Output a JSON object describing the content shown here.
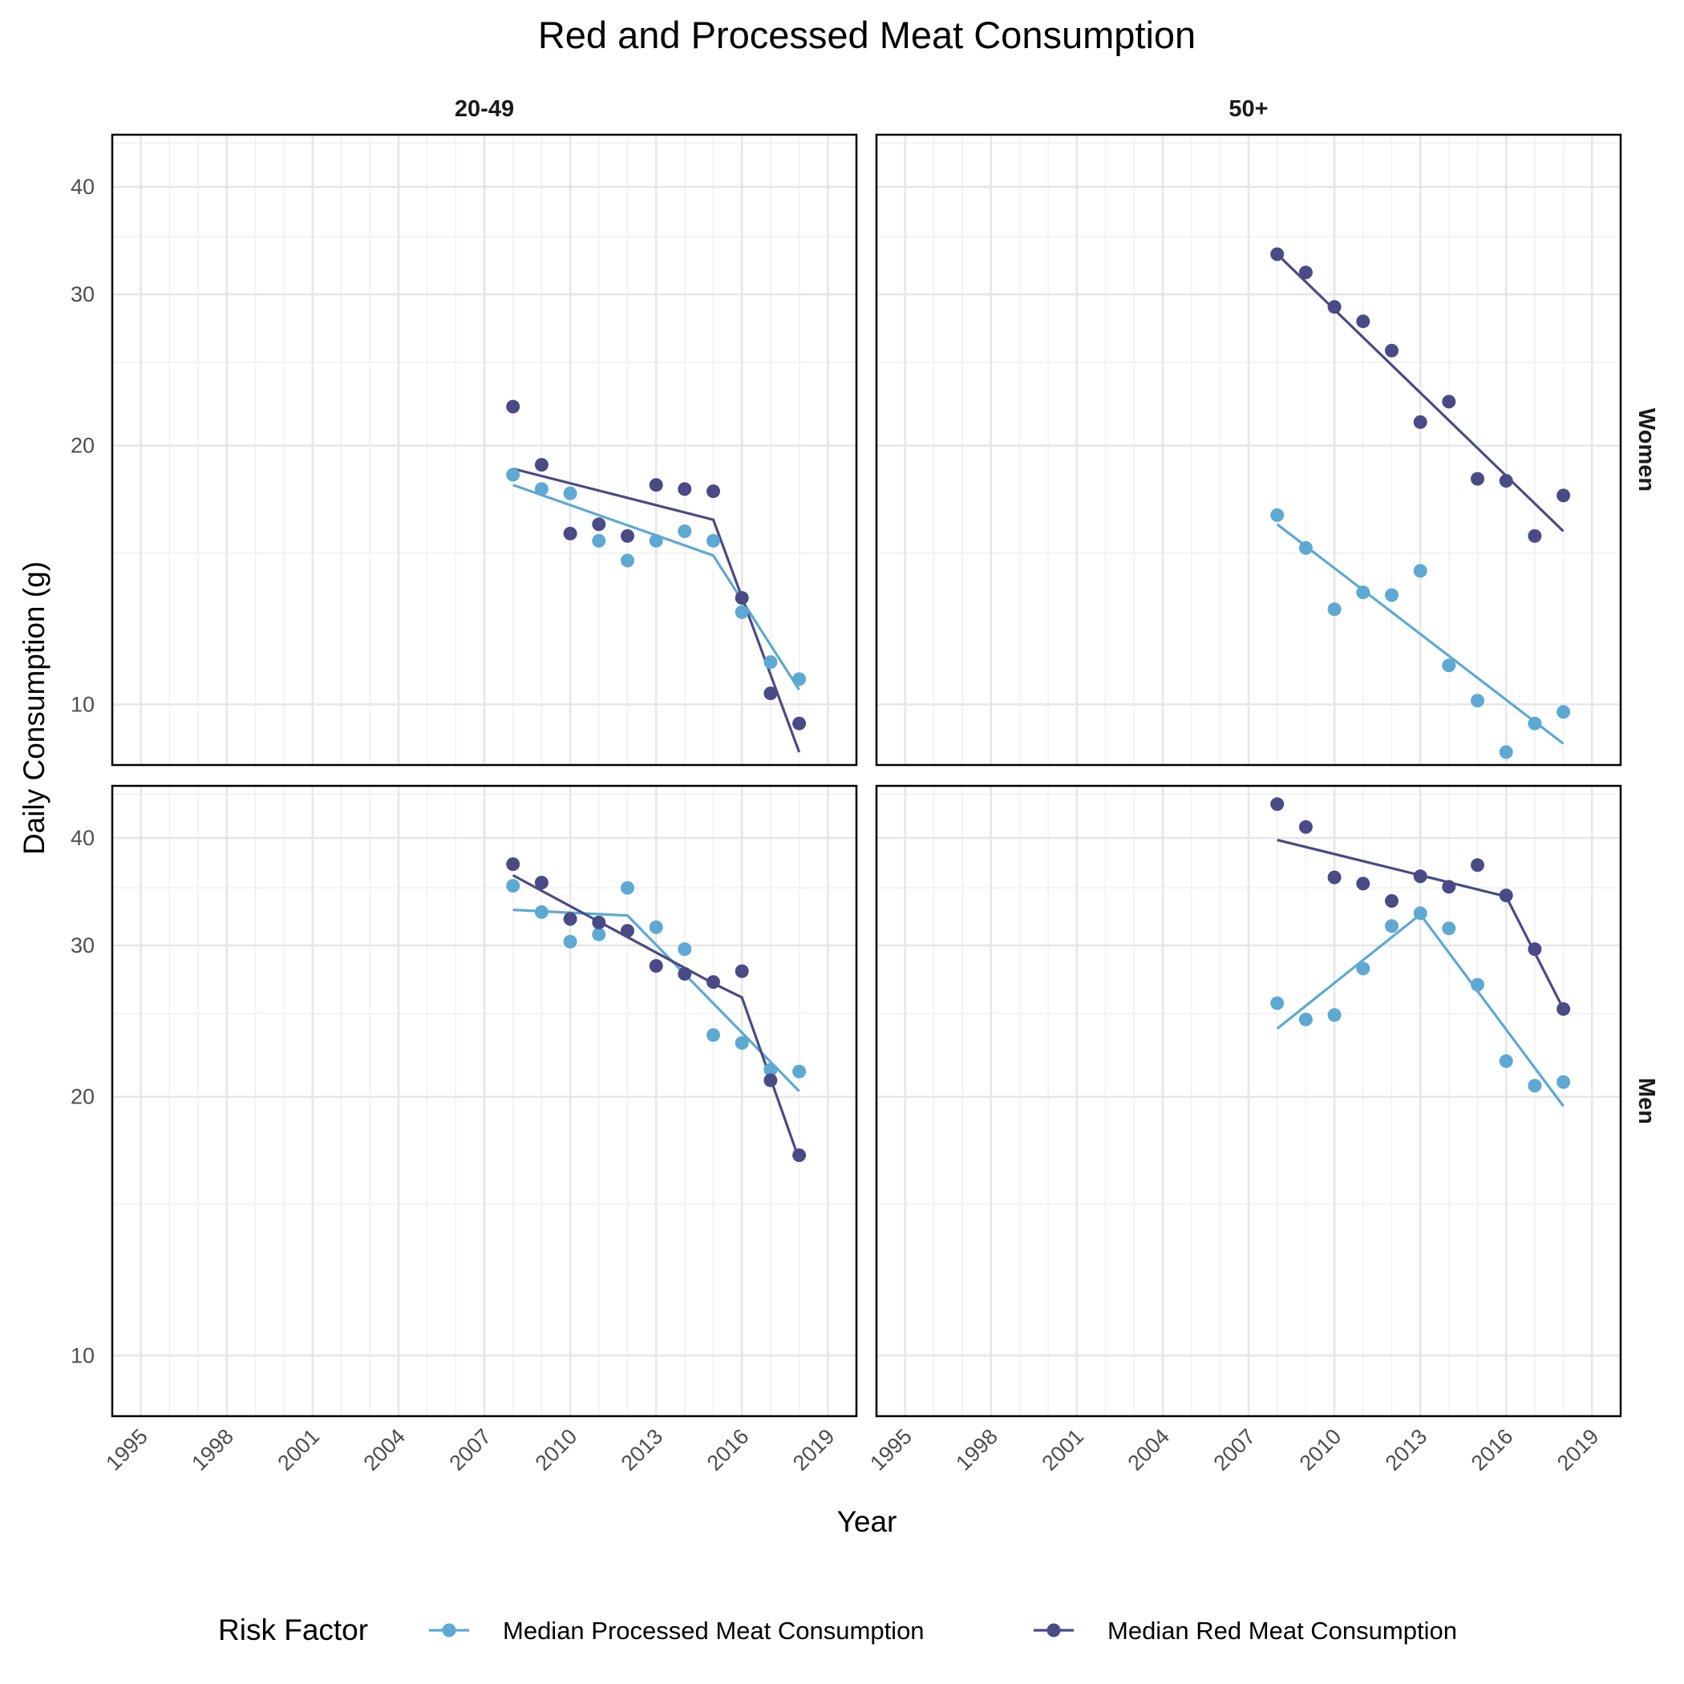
{
  "chart_data": {
    "type": "scatter",
    "title": "Red and Processed Meat Consumption",
    "xlabel": "Year",
    "ylabel": "Daily Consumption (g)",
    "x_ticks": [
      1995,
      1998,
      2001,
      2004,
      2007,
      2010,
      2013,
      2016,
      2019
    ],
    "xlim": [
      1994,
      2020
    ],
    "y_ticks": [
      10,
      20,
      30,
      40
    ],
    "ylim": [
      8.5,
      46
    ],
    "y_scale": "log",
    "grid": true,
    "legend": {
      "title": "Risk Factor",
      "position": "bottom",
      "entries": [
        "Median Processed Meat Consumption",
        "Median Red Meat Consumption"
      ]
    },
    "colors": {
      "processed": "#5DA9D3",
      "red": "#4A4A86"
    },
    "column_facets": [
      "20-49",
      "50+"
    ],
    "row_facets": [
      "Women",
      "Men"
    ],
    "years": [
      2008,
      2009,
      2010,
      2011,
      2012,
      2013,
      2014,
      2015,
      2016,
      2017,
      2018
    ],
    "panels": [
      {
        "age": "20-49",
        "sex": "Women",
        "processed": [
          18.5,
          17.8,
          17.6,
          15.5,
          14.7,
          15.5,
          15.9,
          15.5,
          12.8,
          11.2,
          10.7
        ],
        "red": [
          22.2,
          19.0,
          15.8,
          16.2,
          15.7,
          18.0,
          17.8,
          17.7,
          13.3,
          10.3,
          9.5
        ],
        "processed_trend": [
          [
            2008,
            18.0
          ],
          [
            2015,
            14.9
          ],
          [
            2018,
            10.4
          ]
        ],
        "red_trend": [
          [
            2008,
            18.8
          ],
          [
            2015,
            16.4
          ],
          [
            2018,
            8.8
          ]
        ]
      },
      {
        "age": "50+",
        "sex": "Women",
        "processed": [
          16.6,
          15.2,
          12.9,
          13.5,
          13.4,
          14.3,
          11.1,
          10.1,
          8.8,
          9.5,
          9.8
        ],
        "red": [
          33.4,
          31.8,
          29.0,
          27.9,
          25.8,
          21.3,
          22.5,
          18.3,
          18.2,
          15.7,
          17.5
        ],
        "processed_trend": [
          [
            2008,
            16.2
          ],
          [
            2018,
            9.0
          ]
        ],
        "red_trend": [
          [
            2008,
            33.4
          ],
          [
            2018,
            15.9
          ]
        ]
      },
      {
        "age": "20-49",
        "sex": "Men",
        "processed": [
          35.2,
          32.8,
          30.3,
          30.9,
          35.0,
          31.5,
          29.7,
          23.6,
          23.1,
          21.5,
          21.4
        ],
        "red": [
          37.3,
          35.5,
          32.2,
          31.9,
          31.2,
          28.4,
          27.8,
          27.2,
          28.0,
          20.9,
          17.1
        ],
        "processed_trend": [
          [
            2008,
            33.0
          ],
          [
            2012,
            32.5
          ],
          [
            2018,
            20.3
          ]
        ],
        "red_trend": [
          [
            2008,
            36.2
          ],
          [
            2015,
            27.1
          ],
          [
            2016,
            26.1
          ],
          [
            2018,
            16.9
          ]
        ]
      },
      {
        "age": "50+",
        "sex": "Men",
        "processed": [
          25.7,
          24.6,
          24.9,
          28.2,
          31.6,
          32.7,
          31.4,
          27.0,
          22.0,
          20.6,
          20.8
        ],
        "red": [
          43.8,
          41.2,
          36.0,
          35.4,
          33.8,
          36.1,
          35.1,
          37.2,
          34.3,
          29.7,
          25.3
        ],
        "processed_trend": [
          [
            2008,
            24.0
          ],
          [
            2013,
            32.6
          ],
          [
            2018,
            19.5
          ]
        ],
        "red_trend": [
          [
            2008,
            39.8
          ],
          [
            2013,
            36.2
          ],
          [
            2016,
            34.2
          ],
          [
            2018,
            25.3
          ]
        ]
      }
    ]
  }
}
